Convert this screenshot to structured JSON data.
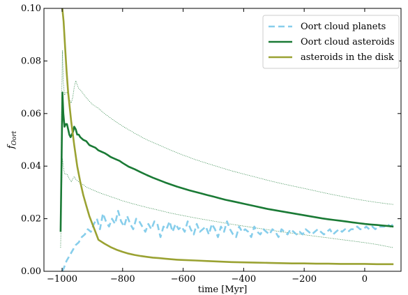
{
  "chart_data": {
    "type": "line",
    "title": "",
    "xlabel": "time [Myr]",
    "ylabel": "f",
    "ylabel_sub": "Oort",
    "xlim": [
      -1060,
      120
    ],
    "ylim": [
      0.0,
      0.1
    ],
    "x_ticks": [
      -1000,
      -800,
      -600,
      -400,
      -200,
      0
    ],
    "x_tick_labels": [
      "−1000",
      "−800",
      "−600",
      "−400",
      "−200",
      "0"
    ],
    "y_ticks": [
      0.0,
      0.02,
      0.04,
      0.06,
      0.08,
      0.1
    ],
    "y_tick_labels": [
      "0.00",
      "0.02",
      "0.04",
      "0.06",
      "0.08",
      "0.10"
    ],
    "grid": false,
    "legend_position": "top-right",
    "series": [
      {
        "name": "Oort cloud planets",
        "color": "#87ceeb",
        "style": "dashed",
        "x": [
          -1000,
          -995,
          -985,
          -975,
          -965,
          -955,
          -945,
          -935,
          -925,
          -915,
          -905,
          -895,
          -885,
          -875,
          -865,
          -855,
          -845,
          -835,
          -825,
          -815,
          -805,
          -795,
          -785,
          -775,
          -765,
          -755,
          -745,
          -735,
          -725,
          -715,
          -705,
          -695,
          -685,
          -675,
          -665,
          -655,
          -645,
          -635,
          -625,
          -615,
          -605,
          -595,
          -585,
          -575,
          -565,
          -555,
          -545,
          -535,
          -525,
          -515,
          -505,
          -495,
          -485,
          -475,
          -465,
          -455,
          -445,
          -435,
          -425,
          -415,
          -405,
          -395,
          -385,
          -375,
          -365,
          -355,
          -345,
          -335,
          -325,
          -315,
          -305,
          -295,
          -285,
          -275,
          -265,
          -255,
          -245,
          -235,
          -225,
          -215,
          -205,
          -195,
          -185,
          -175,
          -165,
          -155,
          -145,
          -135,
          -125,
          -115,
          -105,
          -95,
          -85,
          -75,
          -65,
          -55,
          -45,
          -35,
          -25,
          -15,
          -5,
          5,
          15,
          25,
          35,
          45,
          55,
          65,
          75,
          85,
          95
        ],
        "y": [
          0.0,
          0.001,
          0.004,
          0.006,
          0.008,
          0.01,
          0.011,
          0.013,
          0.014,
          0.016,
          0.015,
          0.018,
          0.02,
          0.016,
          0.022,
          0.019,
          0.017,
          0.02,
          0.018,
          0.023,
          0.019,
          0.017,
          0.021,
          0.018,
          0.016,
          0.02,
          0.019,
          0.017,
          0.015,
          0.018,
          0.016,
          0.019,
          0.018,
          0.013,
          0.017,
          0.016,
          0.019,
          0.015,
          0.018,
          0.016,
          0.017,
          0.015,
          0.019,
          0.016,
          0.014,
          0.018,
          0.015,
          0.016,
          0.017,
          0.014,
          0.018,
          0.016,
          0.013,
          0.017,
          0.015,
          0.019,
          0.016,
          0.014,
          0.013,
          0.017,
          0.015,
          0.016,
          0.015,
          0.013,
          0.017,
          0.015,
          0.014,
          0.016,
          0.015,
          0.014,
          0.016,
          0.015,
          0.013,
          0.016,
          0.015,
          0.014,
          0.016,
          0.015,
          0.014,
          0.015,
          0.014,
          0.016,
          0.015,
          0.014,
          0.015,
          0.016,
          0.015,
          0.014,
          0.015,
          0.016,
          0.014,
          0.015,
          0.016,
          0.015,
          0.016,
          0.015,
          0.016,
          0.016,
          0.017,
          0.016,
          0.016,
          0.017,
          0.016,
          0.017,
          0.016,
          0.017,
          0.017,
          0.017,
          0.018,
          0.017,
          0.018
        ]
      },
      {
        "name": "Oort cloud asteroids",
        "color": "#1a7a35",
        "style": "solid",
        "x": [
          -1005,
          -1002,
          -999,
          -996,
          -992,
          -988,
          -984,
          -980,
          -976,
          -972,
          -968,
          -964,
          -960,
          -955,
          -950,
          -945,
          -940,
          -930,
          -920,
          -910,
          -900,
          -890,
          -880,
          -870,
          -860,
          -850,
          -840,
          -830,
          -820,
          -810,
          -800,
          -780,
          -760,
          -740,
          -720,
          -700,
          -680,
          -660,
          -640,
          -620,
          -600,
          -580,
          -560,
          -540,
          -520,
          -500,
          -480,
          -460,
          -440,
          -420,
          -400,
          -380,
          -360,
          -340,
          -320,
          -300,
          -280,
          -260,
          -240,
          -220,
          -200,
          -180,
          -160,
          -140,
          -120,
          -100,
          -80,
          -60,
          -40,
          -20,
          0,
          20,
          40,
          60,
          80,
          95
        ],
        "y": [
          0.015,
          0.04,
          0.068,
          0.06,
          0.055,
          0.056,
          0.056,
          0.054,
          0.052,
          0.051,
          0.052,
          0.053,
          0.055,
          0.054,
          0.052,
          0.052,
          0.051,
          0.05,
          0.0495,
          0.048,
          0.0475,
          0.047,
          0.046,
          0.0455,
          0.045,
          0.0443,
          0.0435,
          0.043,
          0.0425,
          0.042,
          0.0412,
          0.0398,
          0.0388,
          0.0377,
          0.0366,
          0.0356,
          0.0347,
          0.0338,
          0.033,
          0.0322,
          0.0315,
          0.0308,
          0.0302,
          0.0296,
          0.029,
          0.0284,
          0.0278,
          0.0272,
          0.0267,
          0.0262,
          0.0257,
          0.0252,
          0.0247,
          0.0242,
          0.0237,
          0.0233,
          0.0229,
          0.0225,
          0.0221,
          0.0217,
          0.0213,
          0.0209,
          0.0205,
          0.0201,
          0.0198,
          0.0195,
          0.0192,
          0.0189,
          0.0186,
          0.0183,
          0.018,
          0.0178,
          0.0176,
          0.0174,
          0.0172,
          0.017
        ]
      },
      {
        "name": "asteroids in the disk",
        "color": "#9aa232",
        "style": "solid",
        "x": [
          -1000,
          -995,
          -990,
          -985,
          -980,
          -970,
          -960,
          -950,
          -940,
          -930,
          -920,
          -910,
          -900,
          -890,
          -880,
          -860,
          -840,
          -820,
          -800,
          -780,
          -760,
          -740,
          -720,
          -700,
          -680,
          -660,
          -640,
          -620,
          -600,
          -560,
          -520,
          -480,
          -440,
          -400,
          -360,
          -320,
          -280,
          -240,
          -200,
          -160,
          -120,
          -80,
          -40,
          0,
          40,
          80,
          95
        ],
        "y": [
          0.101,
          0.095,
          0.085,
          0.076,
          0.068,
          0.057,
          0.048,
          0.04,
          0.034,
          0.029,
          0.025,
          0.021,
          0.018,
          0.015,
          0.012,
          0.0105,
          0.0092,
          0.0082,
          0.0074,
          0.0067,
          0.0062,
          0.0058,
          0.0055,
          0.0052,
          0.005,
          0.0048,
          0.0046,
          0.0044,
          0.0043,
          0.0041,
          0.0039,
          0.0037,
          0.0035,
          0.0034,
          0.0033,
          0.0032,
          0.0031,
          0.003,
          0.003,
          0.0029,
          0.0029,
          0.0028,
          0.0028,
          0.0028,
          0.0027,
          0.0027,
          0.0027
        ]
      }
    ],
    "bounds": [
      {
        "color": "#1a7a35",
        "style": "dotted",
        "x": [
          -1005,
          -1002,
          -999,
          -996,
          -992,
          -988,
          -984,
          -980,
          -975,
          -970,
          -965,
          -960,
          -955,
          -950,
          -945,
          -940,
          -930,
          -920,
          -900,
          -880,
          -860,
          -840,
          -820,
          -800,
          -760,
          -720,
          -680,
          -640,
          -600,
          -560,
          -520,
          -480,
          -440,
          -400,
          -360,
          -320,
          -280,
          -240,
          -200,
          -160,
          -120,
          -80,
          -40,
          0,
          40,
          80,
          95
        ],
        "y": [
          0.025,
          0.06,
          0.084,
          0.072,
          0.067,
          0.068,
          0.068,
          0.067,
          0.065,
          0.064,
          0.066,
          0.07,
          0.0725,
          0.071,
          0.0695,
          0.069,
          0.0675,
          0.066,
          0.0635,
          0.062,
          0.06,
          0.0583,
          0.0567,
          0.0552,
          0.0525,
          0.05,
          0.048,
          0.046,
          0.0442,
          0.0425,
          0.041,
          0.0396,
          0.0382,
          0.037,
          0.0358,
          0.0346,
          0.0335,
          0.0325,
          0.0315,
          0.0305,
          0.0295,
          0.0286,
          0.0277,
          0.0269,
          0.0262,
          0.0256,
          0.0254
        ]
      },
      {
        "color": "#1a7a35",
        "style": "dotted",
        "x": [
          -1005,
          -1002,
          -999,
          -996,
          -992,
          -988,
          -984,
          -980,
          -975,
          -970,
          -965,
          -960,
          -955,
          -950,
          -945,
          -940,
          -930,
          -920,
          -900,
          -880,
          -860,
          -840,
          -820,
          -800,
          -760,
          -720,
          -680,
          -640,
          -600,
          -560,
          -520,
          -480,
          -440,
          -400,
          -360,
          -320,
          -280,
          -240,
          -200,
          -160,
          -120,
          -80,
          -40,
          0,
          40,
          80,
          95
        ],
        "y": [
          0.009,
          0.028,
          0.043,
          0.04,
          0.037,
          0.037,
          0.037,
          0.036,
          0.035,
          0.034,
          0.035,
          0.036,
          0.035,
          0.0345,
          0.034,
          0.0335,
          0.033,
          0.032,
          0.031,
          0.03,
          0.0292,
          0.0284,
          0.0276,
          0.0268,
          0.0255,
          0.0243,
          0.0232,
          0.0221,
          0.0212,
          0.0203,
          0.0195,
          0.0187,
          0.0179,
          0.0172,
          0.0165,
          0.0158,
          0.0151,
          0.0145,
          0.0139,
          0.0133,
          0.0127,
          0.0121,
          0.0115,
          0.0109,
          0.0102,
          0.0093,
          0.009
        ]
      }
    ]
  }
}
